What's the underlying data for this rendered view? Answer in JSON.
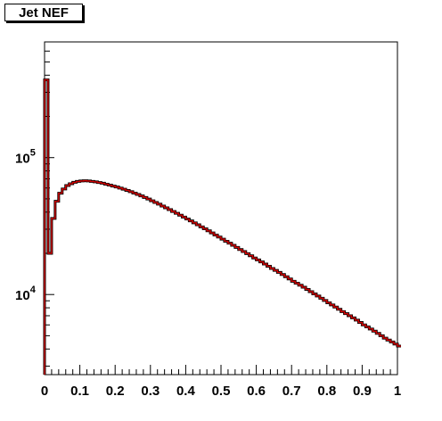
{
  "chart_data": {
    "type": "line",
    "title": "Jet NEF",
    "xlabel": "",
    "ylabel": "",
    "xlim": [
      0,
      1
    ],
    "ylim": [
      2600,
      700000
    ],
    "log_y": true,
    "grid": false,
    "x_ticks": [
      "0",
      "0.1",
      "0.2",
      "0.3",
      "0.4",
      "0.5",
      "0.6",
      "0.7",
      "0.8",
      "0.9",
      "1"
    ],
    "y_ticks": [
      {
        "value": 10000,
        "base": "10",
        "exp": "4"
      },
      {
        "value": 100000,
        "base": "10",
        "exp": "5"
      }
    ],
    "series": [
      {
        "color": "#d40000",
        "outline_color": "#000000",
        "bin_width": 0.01,
        "values": [
          370000,
          20000,
          36000,
          48000,
          55000,
          59000,
          62500,
          64500,
          66000,
          67000,
          67500,
          67800,
          67500,
          67000,
          66500,
          65800,
          65000,
          64000,
          63000,
          62000,
          61000,
          59900,
          58800,
          57600,
          56400,
          55100,
          53800,
          52500,
          51200,
          49800,
          48400,
          47000,
          45700,
          44300,
          43000,
          41700,
          40400,
          39200,
          38000,
          36800,
          35600,
          34500,
          33400,
          32300,
          31200,
          30200,
          29200,
          28200,
          27200,
          26300,
          25400,
          24500,
          23700,
          22900,
          22100,
          21300,
          20600,
          19900,
          19200,
          18500,
          17900,
          17300,
          16700,
          16100,
          15500,
          15000,
          14500,
          14000,
          13500,
          13000,
          12500,
          12100,
          11700,
          11300,
          10900,
          10500,
          10100,
          9750,
          9400,
          9050,
          8700,
          8400,
          8100,
          7800,
          7500,
          7250,
          7000,
          6750,
          6500,
          6250,
          6000,
          5800,
          5600,
          5400,
          5200,
          5000,
          4800,
          4650,
          4500,
          4350,
          4200
        ]
      }
    ]
  }
}
